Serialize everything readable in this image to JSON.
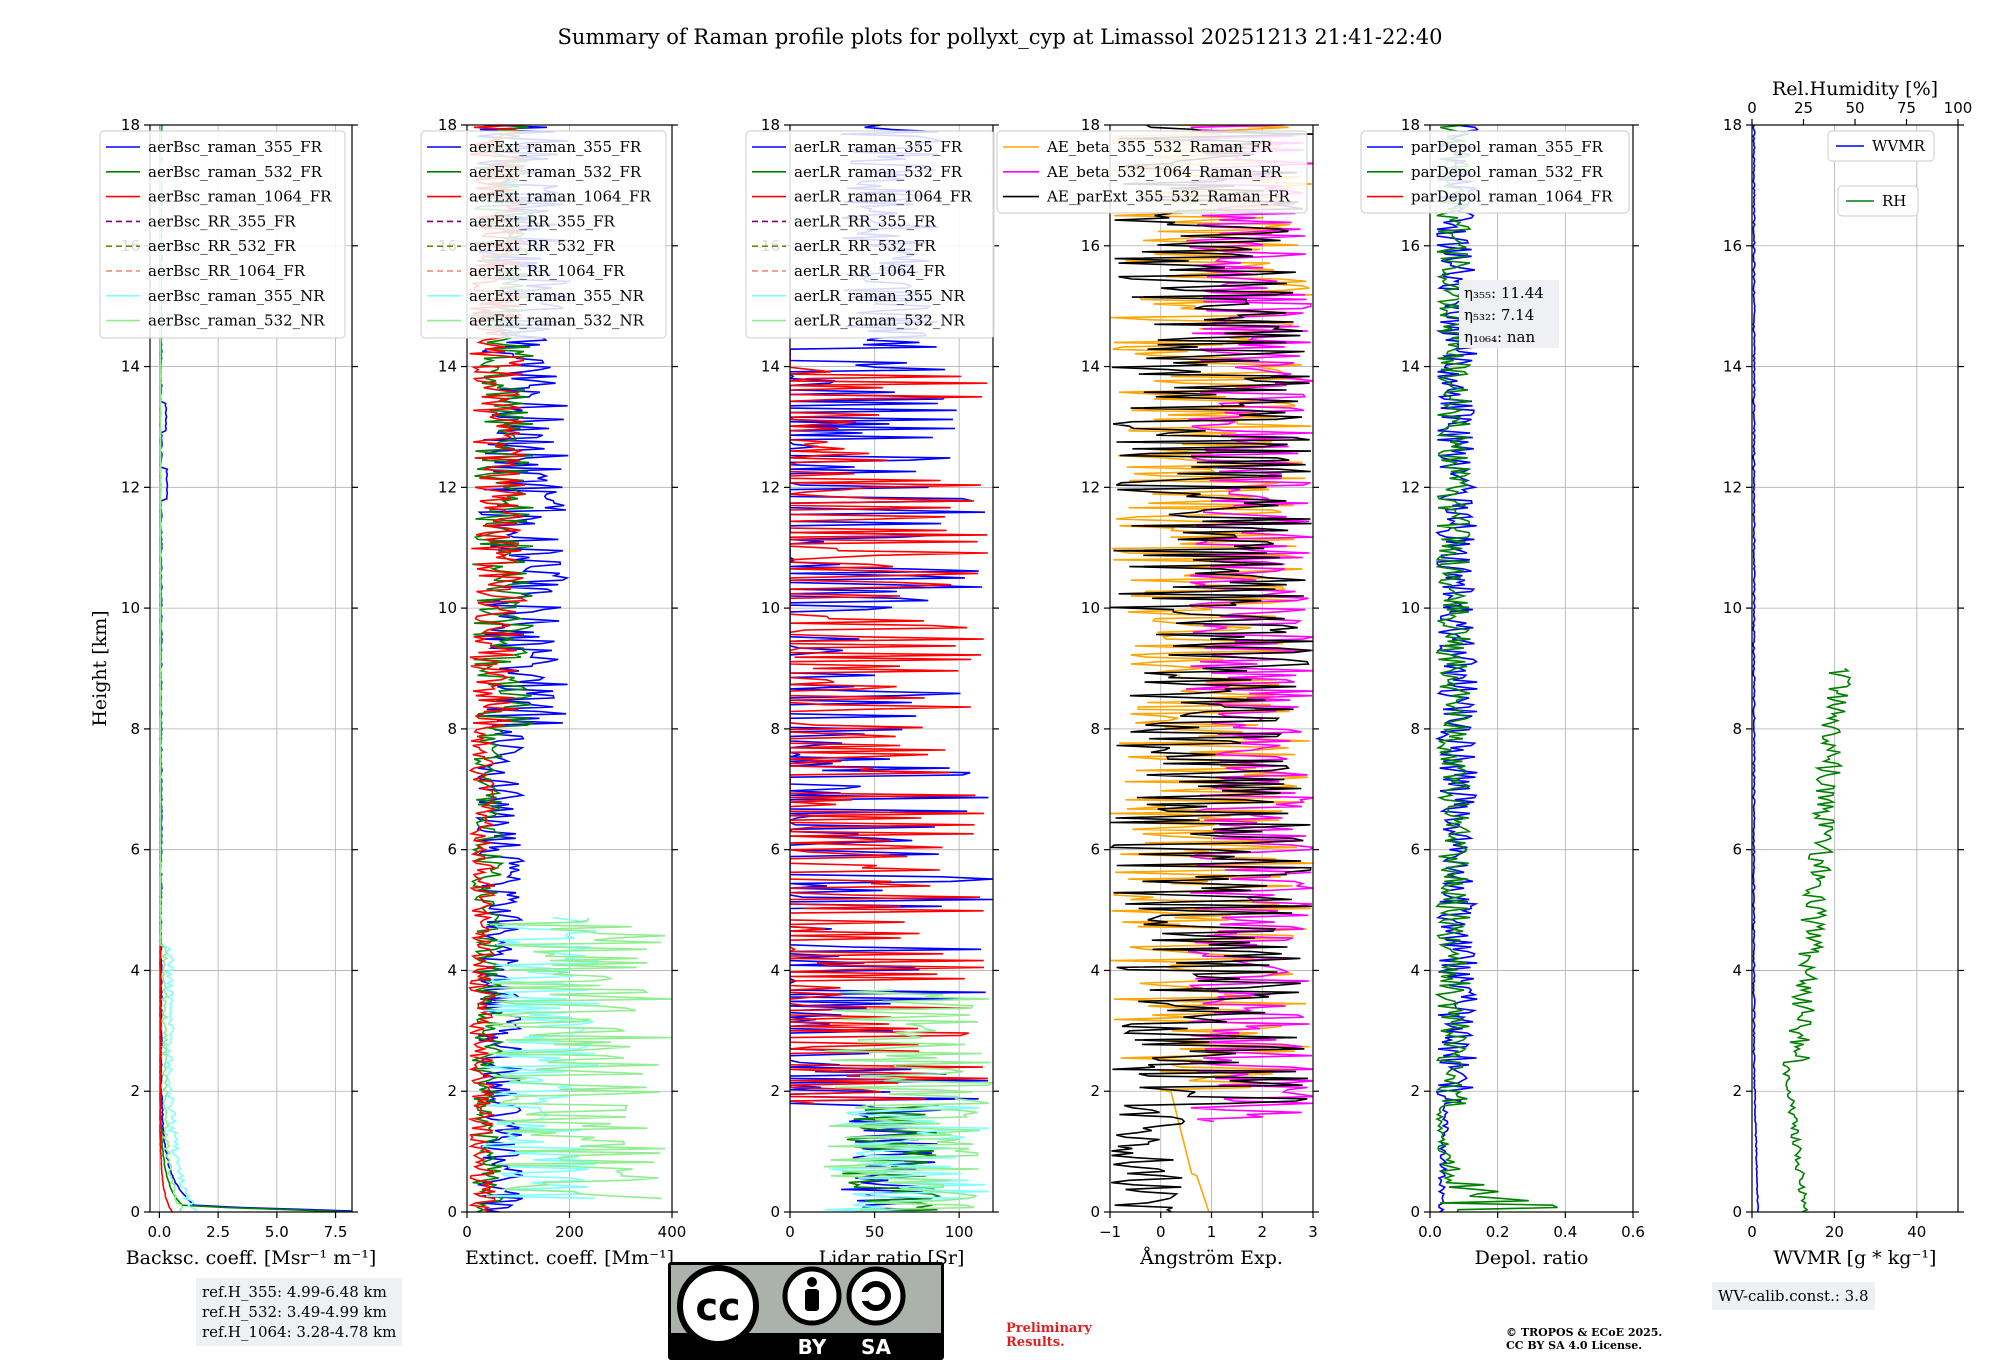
{
  "figure": {
    "title": "Summary of Raman profile plots for pollyxt_cyp at Limassol 20251213 21:41-22:40",
    "refH": [
      "ref.H_355: 4.99-6.48 km",
      "ref.H_532: 3.49-4.99 km",
      "ref.H_1064: 3.28-4.78 km"
    ],
    "wv_calib": "WV-calib.const.: 3.8",
    "preliminary": [
      "Preliminary",
      "Results."
    ],
    "copyright": [
      "© TROPOS & ECoE 2025.",
      "CC BY SA 4.0 License."
    ],
    "license_badge": [
      "BY",
      "SA"
    ]
  },
  "colors": {
    "blue": "#0000ff",
    "green": "#008000",
    "red": "#ff0000",
    "purple": "#800080",
    "olive": "#808000",
    "salmon": "#fa8072",
    "cyan": "#7fffff",
    "lightgreen": "#90ee90",
    "orange": "#ffa500",
    "magenta": "#ff00ff",
    "black": "#000000"
  },
  "chart_data": [
    {
      "type": "line",
      "xlabel": "Backsc. coeff. [Msr⁻¹ m⁻¹]",
      "ylabel": "Height [km]",
      "xlim": [
        -0.4,
        8.2
      ],
      "ylim": [
        0,
        18
      ],
      "xticks": [
        0,
        2.5,
        5,
        7.5
      ],
      "xticklabels": [
        "0.0",
        "2.5",
        "5.0",
        "7.5"
      ],
      "yticks": [
        0,
        2,
        4,
        6,
        8,
        10,
        12,
        14,
        16,
        18
      ],
      "legend": "top-left",
      "series": [
        {
          "name": "aerBsc_raman_355_FR",
          "style": "solid",
          "color": "blue"
        },
        {
          "name": "aerBsc_raman_532_FR",
          "style": "solid",
          "color": "green"
        },
        {
          "name": "aerBsc_raman_1064_FR",
          "style": "solid",
          "color": "red"
        },
        {
          "name": "aerBsc_RR_355_FR",
          "style": "dashed",
          "color": "purple"
        },
        {
          "name": "aerBsc_RR_532_FR",
          "style": "dashed",
          "color": "olive"
        },
        {
          "name": "aerBsc_RR_1064_FR",
          "style": "dashed",
          "color": "salmon"
        },
        {
          "name": "aerBsc_raman_355_NR",
          "style": "solid",
          "color": "cyan"
        },
        {
          "name": "aerBsc_raman_532_NR",
          "style": "solid",
          "color": "lightgreen"
        }
      ]
    },
    {
      "type": "line",
      "xlabel": "Extinct. coeff. [Mm⁻¹]",
      "xlim": [
        0,
        400
      ],
      "ylim": [
        0,
        18
      ],
      "xticks": [
        0,
        200,
        400
      ],
      "xticklabels": [
        "0",
        "200",
        "400"
      ],
      "yticks": [
        0,
        2,
        4,
        6,
        8,
        10,
        12,
        14,
        16,
        18
      ],
      "legend": "top-left",
      "series": [
        {
          "name": "aerExt_raman_355_FR",
          "style": "solid",
          "color": "blue"
        },
        {
          "name": "aerExt_raman_532_FR",
          "style": "solid",
          "color": "green"
        },
        {
          "name": "aerExt_raman_1064_FR",
          "style": "solid",
          "color": "red"
        },
        {
          "name": "aerExt_RR_355_FR",
          "style": "dashed",
          "color": "purple"
        },
        {
          "name": "aerExt_RR_532_FR",
          "style": "dashed",
          "color": "olive"
        },
        {
          "name": "aerExt_RR_1064_FR",
          "style": "dashed",
          "color": "salmon"
        },
        {
          "name": "aerExt_raman_355_NR",
          "style": "solid",
          "color": "cyan"
        },
        {
          "name": "aerExt_raman_532_NR",
          "style": "solid",
          "color": "lightgreen"
        }
      ]
    },
    {
      "type": "line",
      "xlabel": "Lidar ratio [Sr]",
      "xlim": [
        0,
        120
      ],
      "ylim": [
        0,
        18
      ],
      "xticks": [
        0,
        50,
        100
      ],
      "xticklabels": [
        "0",
        "50",
        "100"
      ],
      "yticks": [
        0,
        2,
        4,
        6,
        8,
        10,
        12,
        14,
        16,
        18
      ],
      "legend": "top-left",
      "series": [
        {
          "name": "aerLR_raman_355_FR",
          "style": "solid",
          "color": "blue"
        },
        {
          "name": "aerLR_raman_532_FR",
          "style": "solid",
          "color": "green"
        },
        {
          "name": "aerLR_raman_1064_FR",
          "style": "solid",
          "color": "red"
        },
        {
          "name": "aerLR_RR_355_FR",
          "style": "dashed",
          "color": "purple"
        },
        {
          "name": "aerLR_RR_532_FR",
          "style": "dashed",
          "color": "olive"
        },
        {
          "name": "aerLR_RR_1064_FR",
          "style": "dashed",
          "color": "salmon"
        },
        {
          "name": "aerLR_raman_355_NR",
          "style": "solid",
          "color": "cyan"
        },
        {
          "name": "aerLR_raman_532_NR",
          "style": "solid",
          "color": "lightgreen"
        }
      ]
    },
    {
      "type": "line",
      "xlabel": "Ångström Exp.",
      "xlim": [
        -1,
        3
      ],
      "ylim": [
        0,
        18
      ],
      "xticks": [
        -1,
        0,
        1,
        2,
        3
      ],
      "xticklabels": [
        "−1",
        "0",
        "1",
        "2",
        "3"
      ],
      "yticks": [
        0,
        2,
        4,
        6,
        8,
        10,
        12,
        14,
        16,
        18
      ],
      "legend": "top",
      "series": [
        {
          "name": "AE_beta_355_532_Raman_FR",
          "style": "solid",
          "color": "orange"
        },
        {
          "name": "AE_beta_532_1064_Raman_FR",
          "style": "solid",
          "color": "magenta"
        },
        {
          "name": "AE_parExt_355_532_Raman_FR",
          "style": "solid",
          "color": "black"
        }
      ]
    },
    {
      "type": "line",
      "xlabel": "Depol. ratio",
      "xlim": [
        0,
        0.6
      ],
      "ylim": [
        0,
        18
      ],
      "xticks": [
        0,
        0.2,
        0.4,
        0.6
      ],
      "xticklabels": [
        "0.0",
        "0.2",
        "0.4",
        "0.6"
      ],
      "yticks": [
        0,
        2,
        4,
        6,
        8,
        10,
        12,
        14,
        16,
        18
      ],
      "legend": "top-left",
      "annotation": [
        "η₃₅₅: 11.44",
        "η₅₃₂: 7.14",
        "η₁₀₆₄: nan"
      ],
      "series": [
        {
          "name": "parDepol_raman_355_FR",
          "style": "solid",
          "color": "blue"
        },
        {
          "name": "parDepol_raman_532_FR",
          "style": "solid",
          "color": "green"
        },
        {
          "name": "parDepol_raman_1064_FR",
          "style": "solid",
          "color": "red"
        }
      ]
    },
    {
      "type": "line",
      "xlabel": "WVMR [g * kg⁻¹]",
      "x2label": "Rel.Humidity [%]",
      "xlim": [
        0,
        50
      ],
      "x2lim": [
        0,
        100
      ],
      "ylim": [
        0,
        18
      ],
      "xticks": [
        0,
        20,
        40
      ],
      "xticklabels": [
        "0",
        "20",
        "40"
      ],
      "x2ticks": [
        0,
        25,
        50,
        75,
        100
      ],
      "x2ticklabels": [
        "0",
        "25",
        "50",
        "75",
        "100"
      ],
      "yticks": [
        0,
        2,
        4,
        6,
        8,
        10,
        12,
        14,
        16,
        18
      ],
      "legend": "top-right",
      "series": [
        {
          "name": "WVMR",
          "style": "solid",
          "color": "blue"
        },
        {
          "name": "RH",
          "style": "solid",
          "color": "green"
        }
      ]
    }
  ]
}
